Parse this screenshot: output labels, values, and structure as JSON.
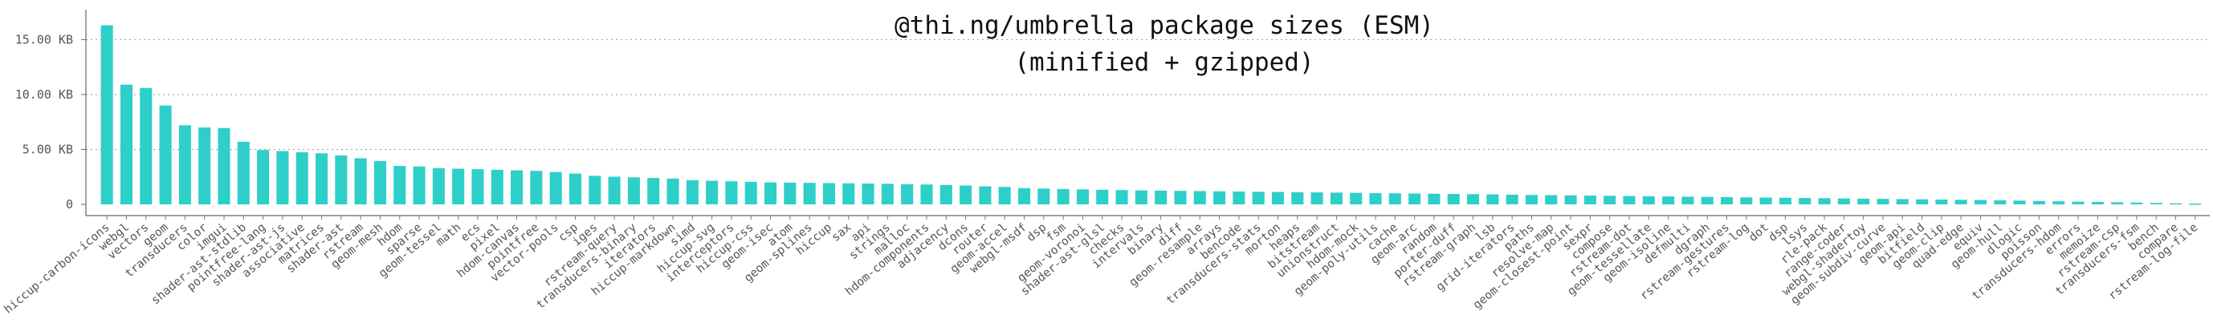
{
  "chart_data": {
    "type": "bar",
    "title": "@thi.ng/umbrella package sizes (ESM)",
    "subtitle": "(minified + gzipped)",
    "xlabel": "",
    "ylabel": "",
    "ylim": [
      0,
      17000
    ],
    "grid": "horizontal dotted",
    "legend": "none",
    "bar_color": "#2ecfc9",
    "y_ticks": [
      {
        "value": 0,
        "label": "0"
      },
      {
        "value": 5000,
        "label": "5.00 KB"
      },
      {
        "value": 10000,
        "label": "10.00 KB"
      },
      {
        "value": 15000,
        "label": "15.00 KB"
      }
    ],
    "categories": [
      "hiccup-carbon-icons",
      "webgl",
      "vectors",
      "geom",
      "transducers",
      "color",
      "imgui",
      "shader-ast-stdlib",
      "pointfree-lang",
      "shader-ast-js",
      "associative",
      "matrices",
      "shader-ast",
      "rstream",
      "geom-mesh",
      "hdom",
      "sparse",
      "geom-tessel",
      "math",
      "ecs",
      "pixel",
      "hdom-canvas",
      "pointfree",
      "vector-pools",
      "csp",
      "iges",
      "rstream-query",
      "transducers-binary",
      "iterators",
      "hiccup-markdown",
      "simd",
      "hiccup-svg",
      "interceptors",
      "hiccup-css",
      "geom-isec",
      "atom",
      "geom-splines",
      "hiccup",
      "sax",
      "api",
      "strings",
      "malloc",
      "hdom-components",
      "adjacency",
      "dcons",
      "router",
      "geom-accel",
      "webgl-msdf",
      "dsp",
      "fsm",
      "geom-voronoi",
      "shader-ast-glsl",
      "checks",
      "intervals",
      "binary",
      "diff",
      "geom-resample",
      "arrays",
      "bencode",
      "transducers-stats",
      "morton",
      "heaps",
      "bitstream",
      "unionstruct",
      "hdom-mock",
      "geom-poly-utils",
      "cache",
      "geom-arc",
      "random",
      "porter-duff",
      "rstream-graph",
      "lsb",
      "grid-iterators",
      "paths",
      "resolve-map",
      "geom-closest-point",
      "sexpr",
      "compose",
      "rstream-dot",
      "geom-tessellate",
      "geom-isoline",
      "defmulti",
      "dgraph",
      "rstream-gestures",
      "rstream-log",
      "dot",
      "dsp",
      "lsys",
      "rle-pack",
      "range-coder",
      "webgl-shadertoy",
      "geom-subdiv-curve",
      "geom-api",
      "bitfield",
      "geom-clip",
      "quad-edge",
      "equiv",
      "geom-hull",
      "dlogic",
      "poisson",
      "transducers-hdom",
      "errors",
      "memoize",
      "rstream-csp",
      "transducers-fsm",
      "bench",
      "compare",
      "rstream-log-file"
    ],
    "values": [
      16300,
      10900,
      10600,
      9000,
      7200,
      7000,
      6950,
      5700,
      4950,
      4850,
      4750,
      4650,
      4450,
      4200,
      3950,
      3500,
      3450,
      3300,
      3250,
      3200,
      3150,
      3100,
      3050,
      2950,
      2800,
      2600,
      2520,
      2460,
      2400,
      2350,
      2200,
      2150,
      2100,
      2050,
      2000,
      1980,
      1960,
      1940,
      1920,
      1900,
      1870,
      1840,
      1810,
      1770,
      1720,
      1640,
      1590,
      1480,
      1440,
      1400,
      1360,
      1330,
      1300,
      1270,
      1250,
      1230,
      1210,
      1190,
      1170,
      1150,
      1130,
      1110,
      1090,
      1070,
      1050,
      1030,
      1010,
      990,
      970,
      950,
      930,
      910,
      880,
      860,
      840,
      820,
      800,
      780,
      760,
      740,
      720,
      700,
      680,
      660,
      640,
      620,
      600,
      580,
      560,
      540,
      520,
      500,
      480,
      460,
      440,
      420,
      400,
      370,
      340,
      310,
      280,
      250,
      220,
      190,
      160,
      130,
      100,
      70
    ]
  }
}
